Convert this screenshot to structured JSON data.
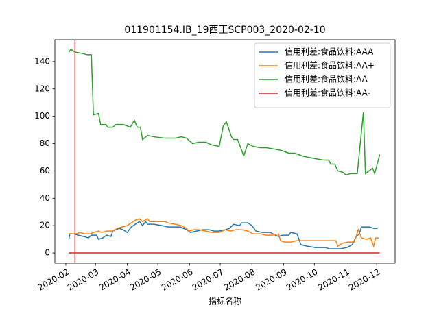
{
  "chart_data": {
    "type": "line",
    "title": "011901154.IB_19西王SCP003_2020-02-10",
    "xlabel": "指标名称",
    "xlim": [
      -10.7,
      322
    ],
    "xticks": [
      {
        "value": 0,
        "label": "2020-02"
      },
      {
        "value": 29,
        "label": "2020-03"
      },
      {
        "value": 60,
        "label": "2020-04"
      },
      {
        "value": 90,
        "label": "2020-05"
      },
      {
        "value": 121,
        "label": "2020-06"
      },
      {
        "value": 151,
        "label": "2020-07"
      },
      {
        "value": 182,
        "label": "2020-08"
      },
      {
        "value": 213,
        "label": "2020-09"
      },
      {
        "value": 243,
        "label": "2020-10"
      },
      {
        "value": 274,
        "label": "2020-11"
      },
      {
        "value": 304,
        "label": "2020-12"
      }
    ],
    "ylim": [
      -7.5,
      156
    ],
    "yticks": [
      0,
      20,
      40,
      60,
      80,
      100,
      120,
      140
    ],
    "legend": "upper right",
    "vline": {
      "x": 9,
      "color": "#d62728"
    },
    "series": [
      {
        "name": "信用利差:食品饮料:AAA",
        "color": "#1f77b4",
        "x": [
          3,
          4,
          8,
          12,
          18,
          22,
          25,
          30,
          32,
          36,
          40,
          44,
          46,
          52,
          56,
          60,
          64,
          68,
          72,
          75,
          78,
          80,
          86,
          94,
          100,
          107,
          112,
          118,
          122,
          128,
          134,
          140,
          145,
          150,
          156,
          160,
          164,
          170,
          172,
          178,
          182,
          186,
          192,
          200,
          205,
          208,
          212,
          218,
          220,
          226,
          230,
          236,
          244,
          254,
          258,
          262,
          268,
          275,
          280,
          284,
          287,
          289,
          297,
          301,
          305
        ],
        "values": [
          10,
          14,
          14,
          13,
          12,
          11,
          13,
          13,
          10,
          11,
          13,
          12,
          16,
          18,
          17,
          15,
          19,
          21,
          23,
          20,
          23,
          21,
          21,
          20,
          19,
          19,
          19,
          17,
          15,
          16,
          17,
          17,
          16,
          16,
          17,
          18,
          21,
          20,
          22,
          22,
          20,
          16,
          15,
          15,
          13,
          12,
          13,
          13,
          15,
          14,
          6,
          5,
          4,
          4,
          3,
          3,
          3,
          4,
          6,
          12,
          14,
          19,
          19,
          18,
          18
        ]
      },
      {
        "name": "信用利差:食品饮料:AA+",
        "color": "#ff7f0e",
        "x": [
          3,
          10,
          14,
          18,
          24,
          27,
          32,
          35,
          40,
          46,
          50,
          55,
          60,
          64,
          68,
          72,
          75,
          80,
          82,
          90,
          97,
          100,
          107,
          113,
          118,
          120,
          125,
          130,
          137,
          143,
          150,
          156,
          161,
          166,
          172,
          178,
          183,
          190,
          196,
          202,
          208,
          210,
          214,
          220,
          226,
          232,
          244,
          250,
          258,
          264,
          266,
          270,
          276,
          282,
          286,
          289,
          294,
          298,
          301,
          303,
          306
        ],
        "values": [
          14,
          14,
          15,
          14,
          14,
          15,
          16,
          15,
          16,
          16,
          18,
          19,
          20,
          22,
          24,
          25,
          23,
          25,
          23,
          23,
          23,
          22,
          21,
          20,
          18,
          16,
          17,
          17,
          16,
          15,
          15,
          17,
          16,
          17,
          17,
          16,
          14,
          14,
          13,
          13,
          14,
          9,
          8,
          8,
          9,
          9,
          9,
          9,
          9,
          9,
          5,
          7,
          8,
          8,
          17,
          11,
          10,
          11,
          5,
          11,
          11
        ]
      },
      {
        "name": "信用利差:食品饮料:AA",
        "color": "#2ca02c",
        "x": [
          3,
          5,
          9,
          16,
          21,
          25,
          27,
          32,
          34,
          39,
          41,
          46,
          49,
          56,
          60,
          63,
          67,
          70,
          73,
          75,
          80,
          86,
          97,
          107,
          113,
          118,
          124,
          130,
          137,
          143,
          150,
          154,
          157,
          162,
          164,
          168,
          174,
          178,
          183,
          190,
          196,
          204,
          211,
          218,
          224,
          231,
          237,
          244,
          252,
          257,
          259,
          263,
          266,
          271,
          274,
          278,
          285,
          291,
          293,
          300,
          302,
          307
        ],
        "values": [
          147,
          149,
          147,
          146,
          145,
          145,
          101,
          102,
          94,
          94,
          92,
          92,
          94,
          94,
          93,
          92,
          97,
          92,
          92,
          83,
          86,
          85,
          84,
          84,
          85,
          84,
          80,
          81,
          81,
          79,
          78,
          93,
          96,
          85,
          83,
          83,
          71,
          80,
          78,
          77,
          77,
          76,
          75,
          73,
          73,
          71,
          70,
          69,
          68,
          68,
          65,
          65,
          60,
          59,
          57,
          58,
          58,
          103,
          58,
          62,
          58,
          72
        ]
      },
      {
        "name": "信用利差:食品饮料:AA-",
        "color": "#d62728",
        "x": [
          3,
          307
        ],
        "values": [
          0,
          0
        ]
      }
    ]
  }
}
